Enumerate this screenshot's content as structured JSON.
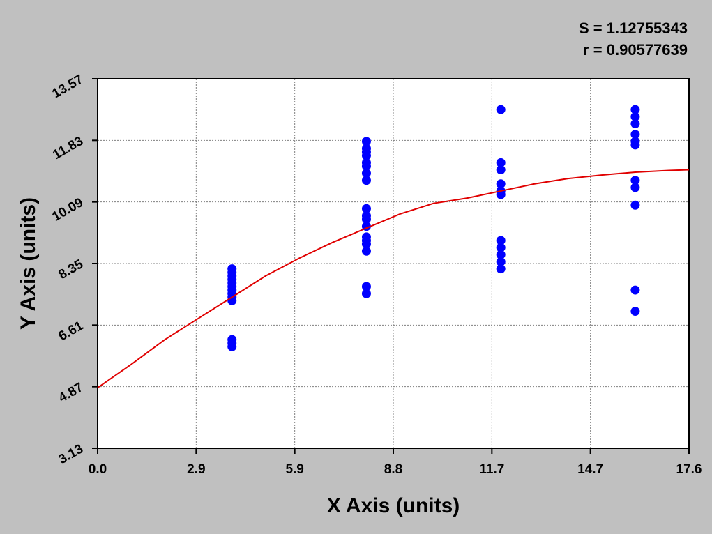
{
  "chart_data": {
    "type": "scatter",
    "annotations": [
      "S = 1.12755343",
      "r = 0.90577639"
    ],
    "x_label": "X Axis (units)",
    "y_label": "Y Axis (units)",
    "xlim": [
      0,
      17.6
    ],
    "ylim": [
      3.13,
      13.57
    ],
    "xticks": [
      {
        "value": 0,
        "label": "0.0"
      },
      {
        "value": 2.9333,
        "label": "2.9"
      },
      {
        "value": 5.8667,
        "label": "5.9"
      },
      {
        "value": 8.8,
        "label": "8.8"
      },
      {
        "value": 11.7333,
        "label": "11.7"
      },
      {
        "value": 14.6667,
        "label": "14.7"
      },
      17.6
    ],
    "yticks": [
      3.13,
      4.87,
      6.61,
      8.35,
      10.09,
      11.83,
      13.57
    ],
    "grid": true,
    "series": [
      {
        "type": "scatter",
        "color": "#0000ff",
        "x": [
          4,
          4,
          4,
          4,
          4,
          4,
          4,
          4,
          4,
          4,
          4,
          4,
          4,
          8,
          8,
          8,
          8,
          8,
          8,
          8,
          8,
          8,
          8,
          8,
          8,
          8,
          8,
          8,
          8,
          8,
          8,
          12,
          12,
          12,
          12,
          12,
          12,
          12,
          12,
          12,
          12,
          12,
          16,
          16,
          16,
          16,
          16,
          16,
          16,
          16,
          16,
          16,
          16
        ],
        "values": [
          8.2,
          8.1,
          8.0,
          7.9,
          7.8,
          7.7,
          7.6,
          7.5,
          7.4,
          7.3,
          6.2,
          6.1,
          6.0,
          11.8,
          11.6,
          11.5,
          11.4,
          11.2,
          11.1,
          10.9,
          10.7,
          9.9,
          9.7,
          9.6,
          9.4,
          9.1,
          9.0,
          8.9,
          8.7,
          7.7,
          7.5,
          12.7,
          11.2,
          11.0,
          10.6,
          10.4,
          10.3,
          9.0,
          8.8,
          8.6,
          8.4,
          8.2,
          12.7,
          12.5,
          12.3,
          12.0,
          11.8,
          11.7,
          10.7,
          10.5,
          10.0,
          7.6,
          7.0
        ]
      },
      {
        "type": "line",
        "color": "#e00000",
        "x": [
          0,
          1,
          2,
          3,
          4,
          5,
          6,
          7,
          8,
          9,
          10,
          11,
          12,
          13,
          14,
          15,
          16,
          17,
          17.6
        ],
        "values": [
          4.84,
          5.5,
          6.2,
          6.8,
          7.4,
          8.0,
          8.5,
          8.95,
          9.35,
          9.75,
          10.05,
          10.2,
          10.4,
          10.6,
          10.75,
          10.85,
          10.93,
          10.98,
          11.0
        ]
      }
    ]
  }
}
